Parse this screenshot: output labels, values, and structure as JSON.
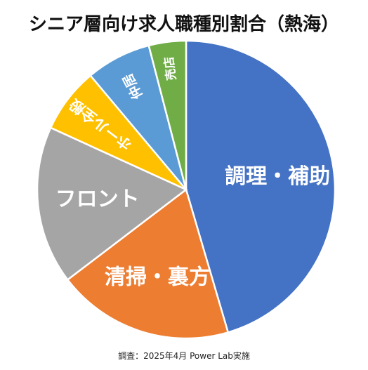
{
  "title": "シニア層向け求人職種別割合（熱海）",
  "source": "調査：2025年4月 Power Lab実施",
  "chart_data": {
    "type": "pie",
    "start": "12 o'clock",
    "direction": "clockwise",
    "slices": [
      {
        "label": "調理・補助",
        "value": 45,
        "color": "#4472C4"
      },
      {
        "label": "清掃・裏方",
        "value": 19,
        "color": "#ED7D31"
      },
      {
        "label": "フロント",
        "value": 17,
        "color": "#A5A5A5"
      },
      {
        "label": "ホール全般",
        "value": 7,
        "color": "#FFC000"
      },
      {
        "label": "仲居",
        "value": 7,
        "color": "#5B9BD5"
      },
      {
        "label": "売店",
        "value": 4,
        "color": "#70AD47"
      }
    ]
  }
}
